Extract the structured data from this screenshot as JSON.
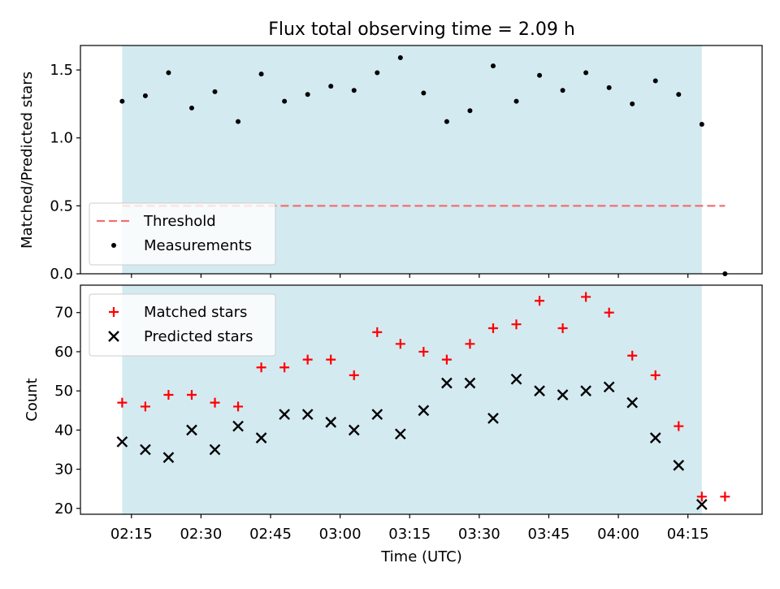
{
  "chart_data": [
    {
      "type": "scatter",
      "title": "Flux total observing time = 2.09 h",
      "xlabel": "",
      "ylabel": "Matched/Predicted stars",
      "xlim": [
        "02:04",
        "04:31"
      ],
      "ylim": [
        0,
        1.68
      ],
      "yticks": [
        0.0,
        0.5,
        1.0,
        1.5
      ],
      "ytick_labels": [
        "0.0",
        "0.5",
        "1.0",
        "1.5"
      ],
      "shaded_span": [
        "02:13",
        "04:18"
      ],
      "shaded_color": "#d4eaf1",
      "legend_position": "lower-left",
      "threshold": {
        "name": "Threshold",
        "y": 0.5,
        "x_range": [
          "02:13",
          "04:23"
        ],
        "color": "#f07070",
        "style": "dashed"
      },
      "series": [
        {
          "name": "Measurements",
          "marker": "dot",
          "color": "#000000",
          "x": [
            "02:13",
            "02:18",
            "02:23",
            "02:28",
            "02:33",
            "02:38",
            "02:43",
            "02:48",
            "02:53",
            "02:58",
            "03:03",
            "03:08",
            "03:13",
            "03:18",
            "03:23",
            "03:28",
            "03:33",
            "03:38",
            "03:43",
            "03:48",
            "03:53",
            "03:58",
            "04:03",
            "04:08",
            "04:13",
            "04:18",
            "04:23"
          ],
          "y": [
            1.27,
            1.31,
            1.48,
            1.22,
            1.34,
            1.12,
            1.47,
            1.27,
            1.32,
            1.38,
            1.35,
            1.48,
            1.59,
            1.33,
            1.12,
            1.2,
            1.53,
            1.27,
            1.46,
            1.35,
            1.48,
            1.37,
            1.25,
            1.42,
            1.32,
            1.1,
            0.0
          ]
        }
      ]
    },
    {
      "type": "scatter",
      "xlabel": "Time (UTC)",
      "ylabel": "Count",
      "xlim": [
        "02:04",
        "04:31"
      ],
      "ylim": [
        18.5,
        77
      ],
      "yticks": [
        20,
        30,
        40,
        50,
        60,
        70
      ],
      "ytick_labels": [
        "20",
        "30",
        "40",
        "50",
        "60",
        "70"
      ],
      "xticks": [
        "02:15",
        "02:30",
        "02:45",
        "03:00",
        "03:15",
        "03:30",
        "03:45",
        "04:00",
        "04:15"
      ],
      "xtick_labels": [
        "02:15",
        "02:30",
        "02:45",
        "03:00",
        "03:15",
        "03:30",
        "03:45",
        "04:00",
        "04:15"
      ],
      "shaded_span": [
        "02:13",
        "04:18"
      ],
      "shaded_color": "#d4eaf1",
      "legend_position": "upper-left",
      "series": [
        {
          "name": "Matched stars",
          "marker": "plus",
          "color": "#ff0000",
          "x": [
            "02:13",
            "02:18",
            "02:23",
            "02:28",
            "02:33",
            "02:38",
            "02:43",
            "02:48",
            "02:53",
            "02:58",
            "03:03",
            "03:08",
            "03:13",
            "03:18",
            "03:23",
            "03:28",
            "03:33",
            "03:38",
            "03:43",
            "03:48",
            "03:53",
            "03:58",
            "04:03",
            "04:08",
            "04:13",
            "04:18",
            "04:23"
          ],
          "y": [
            47,
            46,
            49,
            49,
            47,
            46,
            56,
            56,
            58,
            58,
            54,
            65,
            62,
            60,
            58,
            62,
            66,
            67,
            73,
            66,
            74,
            70,
            59,
            54,
            41,
            23,
            23
          ]
        },
        {
          "name": "Predicted stars",
          "marker": "x",
          "color": "#000000",
          "x": [
            "02:13",
            "02:18",
            "02:23",
            "02:28",
            "02:33",
            "02:38",
            "02:43",
            "02:48",
            "02:53",
            "02:58",
            "03:03",
            "03:08",
            "03:13",
            "03:18",
            "03:23",
            "03:28",
            "03:33",
            "03:38",
            "03:43",
            "03:48",
            "03:53",
            "03:58",
            "04:03",
            "04:08",
            "04:13",
            "04:18"
          ],
          "y": [
            37,
            35,
            33,
            40,
            35,
            41,
            38,
            44,
            44,
            42,
            40,
            44,
            39,
            45,
            52,
            52,
            43,
            53,
            50,
            49,
            50,
            51,
            47,
            38,
            31,
            21
          ]
        }
      ]
    }
  ]
}
